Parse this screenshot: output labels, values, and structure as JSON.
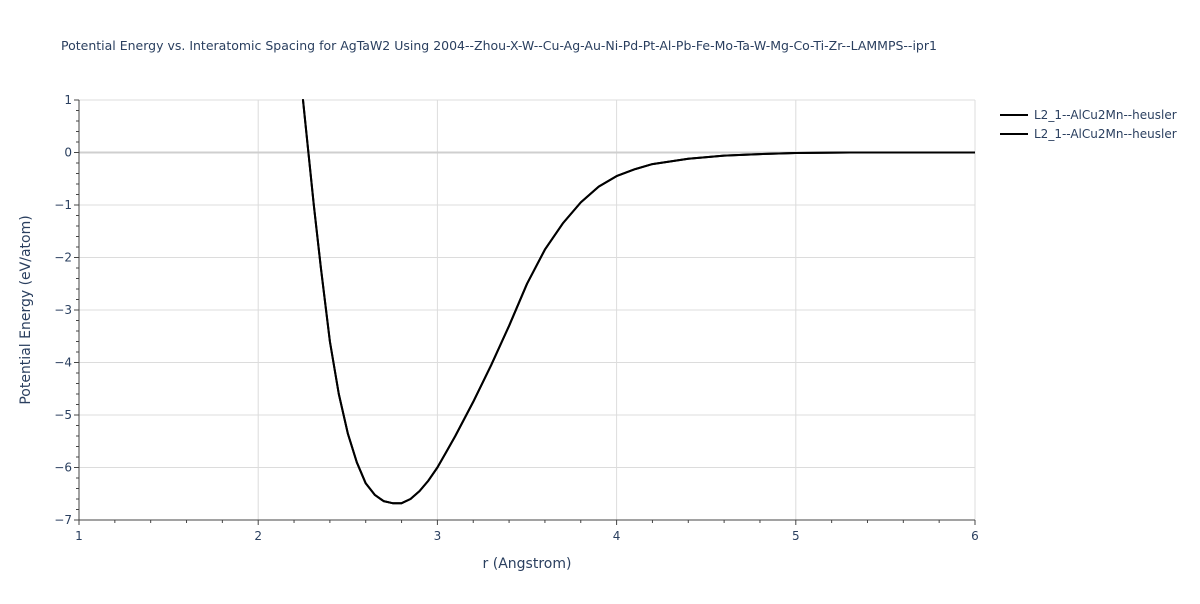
{
  "chart_data": {
    "type": "line",
    "title": "Potential Energy vs. Interatomic Spacing for AgTaW2 Using 2004--Zhou-X-W--Cu-Ag-Au-Ni-Pd-Pt-Al-Pb-Fe-Mo-Ta-W-Mg-Co-Ti-Zr--LAMMPS--ipr1",
    "xlabel": "r (Angstrom)",
    "ylabel": "Potential Energy (eV/atom)",
    "xlim": [
      1,
      6
    ],
    "ylim": [
      -7,
      1
    ],
    "x_ticks": [
      1,
      2,
      3,
      4,
      5,
      6
    ],
    "y_ticks": [
      1,
      0,
      -1,
      -2,
      -3,
      -4,
      -5,
      -6,
      -7
    ],
    "x_tick_labels": [
      "1",
      "2",
      "3",
      "4",
      "5",
      "6"
    ],
    "y_tick_labels": [
      "1",
      "0",
      "−1",
      "−2",
      "−3",
      "−4",
      "−5",
      "−6",
      "−7"
    ],
    "grid": true,
    "legend_position": "top-right",
    "series": [
      {
        "name": "L2_1--AlCu2Mn--heusler",
        "color": "#000000",
        "x": [
          2.25,
          2.28,
          2.31,
          2.35,
          2.4,
          2.45,
          2.5,
          2.55,
          2.6,
          2.65,
          2.7,
          2.75,
          2.8,
          2.85,
          2.9,
          2.95,
          3.0,
          3.05,
          3.1,
          3.2,
          3.3,
          3.4,
          3.5,
          3.6,
          3.7,
          3.8,
          3.9,
          4.0,
          4.1,
          4.2,
          4.4,
          4.6,
          4.8,
          5.0,
          5.3,
          5.6,
          6.0
        ],
        "y": [
          1.0,
          0.0,
          -1.0,
          -2.2,
          -3.6,
          -4.6,
          -5.35,
          -5.9,
          -6.3,
          -6.52,
          -6.64,
          -6.68,
          -6.68,
          -6.6,
          -6.45,
          -6.25,
          -6.0,
          -5.7,
          -5.4,
          -4.75,
          -4.05,
          -3.3,
          -2.5,
          -1.85,
          -1.35,
          -0.95,
          -0.65,
          -0.45,
          -0.32,
          -0.22,
          -0.12,
          -0.06,
          -0.03,
          -0.01,
          0.0,
          0.0,
          0.0
        ]
      },
      {
        "name": "L2_1--AlCu2Mn--heusler",
        "color": "#000000",
        "x": [
          2.25,
          2.28,
          2.31,
          2.35,
          2.4,
          2.45,
          2.5,
          2.55,
          2.6,
          2.65,
          2.7,
          2.75,
          2.8,
          2.85,
          2.9,
          2.95,
          3.0,
          3.05,
          3.1,
          3.2,
          3.3,
          3.4,
          3.5,
          3.6,
          3.7,
          3.8,
          3.9,
          4.0,
          4.1,
          4.2,
          4.4,
          4.6,
          4.8,
          5.0,
          5.3,
          5.6,
          6.0
        ],
        "y": [
          1.0,
          0.0,
          -1.0,
          -2.2,
          -3.6,
          -4.6,
          -5.35,
          -5.9,
          -6.3,
          -6.52,
          -6.64,
          -6.68,
          -6.68,
          -6.6,
          -6.45,
          -6.25,
          -6.0,
          -5.7,
          -5.4,
          -4.75,
          -4.05,
          -3.3,
          -2.5,
          -1.85,
          -1.35,
          -0.95,
          -0.65,
          -0.45,
          -0.32,
          -0.22,
          -0.12,
          -0.06,
          -0.03,
          -0.01,
          0.0,
          0.0,
          0.0
        ]
      }
    ]
  }
}
